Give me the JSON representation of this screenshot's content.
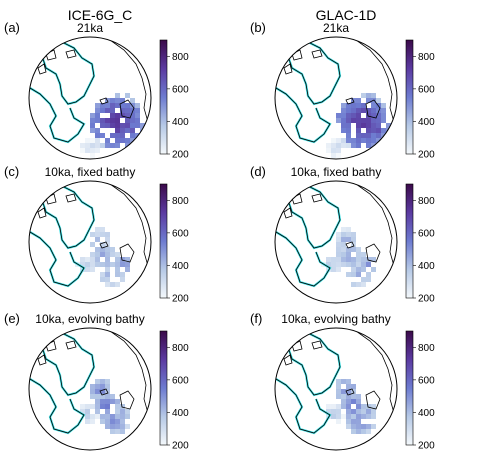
{
  "columns": [
    {
      "title": "ICE-6G_C"
    },
    {
      "title": "GLAC-1D"
    }
  ],
  "panels": [
    {
      "letter": "(a)",
      "subtitle": "21ka",
      "pattern": "lgm"
    },
    {
      "letter": "(b)",
      "subtitle": "21ka",
      "pattern": "lgm"
    },
    {
      "letter": "(c)",
      "subtitle": "10ka, fixed bathy",
      "pattern": "fixed"
    },
    {
      "letter": "(d)",
      "subtitle": "10ka, fixed bathy",
      "pattern": "fixed"
    },
    {
      "letter": "(e)",
      "subtitle": "10ka, evolving bathy",
      "pattern": "evolving"
    },
    {
      "letter": "(f)",
      "subtitle": "10ka, evolving bathy",
      "pattern": "evolving"
    }
  ],
  "colorbar": {
    "ticks": [
      "800",
      "600",
      "400",
      "200"
    ],
    "min": 200,
    "max": 900,
    "colors": [
      "#f4f8fb",
      "#b6c9e6",
      "#6d7bd0",
      "#5b3aa0",
      "#3b0a4a"
    ]
  },
  "outline_color": "#3fe0e4"
}
